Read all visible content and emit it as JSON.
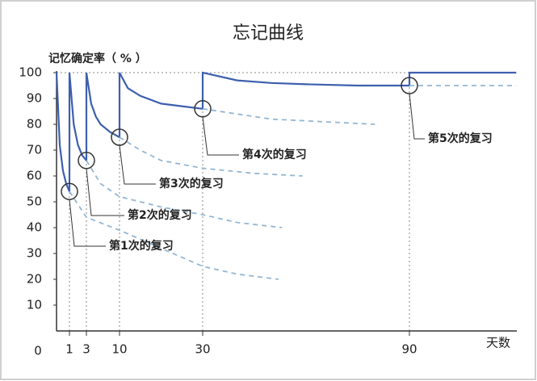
{
  "chart_data": {
    "type": "line",
    "title": "忘记曲线",
    "y_label": "记忆确定率（ % ）",
    "x_label": "天数",
    "xlim": [
      0,
      121
    ],
    "xticks": [
      0,
      1,
      3,
      10,
      30,
      90
    ],
    "ylim": [
      0,
      100
    ],
    "yticks": [
      10,
      20,
      30,
      40,
      50,
      60,
      70,
      80,
      90,
      100
    ],
    "series": [
      {
        "color": "#3d5fae",
        "style": "solid",
        "x": [
          0,
          0.25,
          0.5,
          0.75,
          1,
          1,
          1.5,
          2,
          2.5,
          3,
          3,
          4,
          5,
          6,
          8,
          10,
          10,
          12,
          15,
          20,
          25,
          30,
          30,
          40,
          50,
          60,
          75,
          90,
          90,
          121
        ],
        "values": [
          100,
          72,
          62,
          57,
          54,
          100,
          80,
          72,
          68,
          66,
          100,
          88,
          83,
          80,
          77,
          75,
          100,
          94,
          91,
          88,
          87,
          86,
          100,
          97,
          96,
          95.5,
          95,
          95,
          100,
          100
        ]
      },
      {
        "color": "#94b6d2",
        "style": "dashed",
        "x": [
          1,
          3,
          10,
          20,
          30,
          40,
          52
        ],
        "values": [
          54,
          44,
          39,
          32,
          25,
          22,
          20
        ]
      },
      {
        "color": "#94b6d2",
        "style": "dashed",
        "x": [
          3,
          6,
          10,
          20,
          30,
          40,
          53
        ],
        "values": [
          66,
          57,
          52,
          48,
          45,
          42,
          40
        ]
      },
      {
        "color": "#94b6d2",
        "style": "dashed",
        "x": [
          10,
          15,
          20,
          30,
          45,
          59
        ],
        "values": [
          75,
          70,
          66,
          63,
          61,
          60
        ]
      },
      {
        "color": "#94b6d2",
        "style": "dashed",
        "x": [
          30,
          40,
          50,
          65,
          80
        ],
        "values": [
          86,
          84,
          82,
          81,
          80
        ]
      },
      {
        "color": "#94b6d2",
        "style": "dashed",
        "x": [
          90,
          121
        ],
        "values": [
          95,
          95
        ]
      }
    ],
    "annotations": [
      {
        "label": "第1次的复习",
        "x": 1,
        "y": 54
      },
      {
        "label": "第2次的复习",
        "x": 3,
        "y": 66
      },
      {
        "label": "第3次的复习",
        "x": 10,
        "y": 75
      },
      {
        "label": "第4次的复习",
        "x": 30,
        "y": 86
      },
      {
        "label": "第5次的复习",
        "x": 90,
        "y": 95
      }
    ]
  }
}
